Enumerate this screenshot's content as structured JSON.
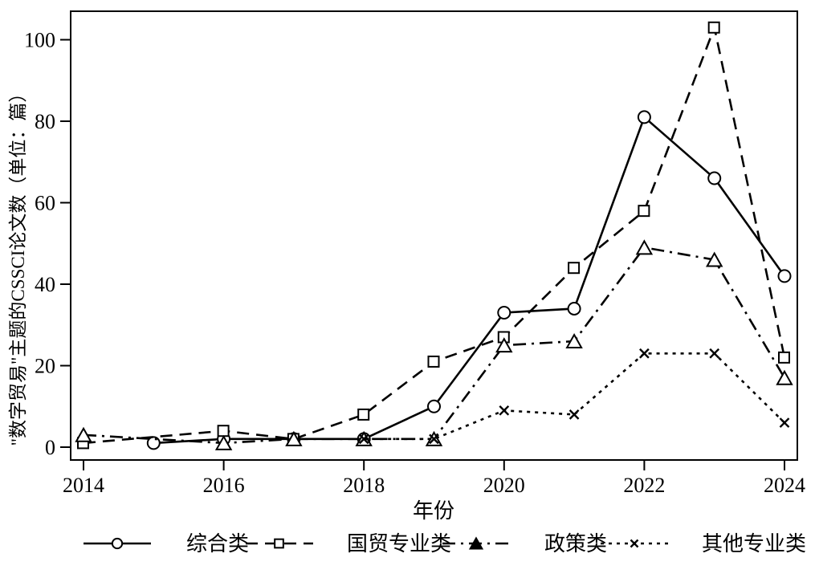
{
  "figure": {
    "background": "#ffffff",
    "ink_color": "#000000"
  },
  "chart_data": {
    "type": "line",
    "title": "",
    "xlabel": "年份",
    "ylabel": "\"数字贸易\"主题的CSSCI论文数（单位：篇）",
    "x": [
      2014,
      2015,
      2016,
      2017,
      2018,
      2019,
      2020,
      2021,
      2022,
      2023,
      2024
    ],
    "xticks": [
      2014,
      2016,
      2018,
      2020,
      2022,
      2024
    ],
    "yticks": [
      0,
      20,
      40,
      60,
      80,
      100
    ],
    "xlim": [
      2014,
      2024
    ],
    "ylim": [
      0,
      100
    ],
    "grid": false,
    "legend_position": "bottom",
    "series": [
      {
        "name": "综合类",
        "marker": "circle",
        "linestyle": "solid",
        "values": [
          null,
          1,
          2,
          2,
          2,
          10,
          33,
          34,
          81,
          66,
          42
        ]
      },
      {
        "name": "国贸专业类",
        "marker": "square",
        "linestyle": "dashed",
        "values": [
          1,
          null,
          4,
          2,
          8,
          21,
          27,
          44,
          58,
          103,
          22
        ]
      },
      {
        "name": "政策类",
        "marker": "triangle",
        "linestyle": "dashdot",
        "values": [
          3,
          null,
          1,
          2,
          2,
          2,
          25,
          26,
          49,
          46,
          17
        ]
      },
      {
        "name": "其他专业类",
        "marker": "x",
        "linestyle": "dotted",
        "values": [
          null,
          null,
          null,
          null,
          2,
          2,
          9,
          8,
          23,
          23,
          6
        ]
      }
    ]
  }
}
